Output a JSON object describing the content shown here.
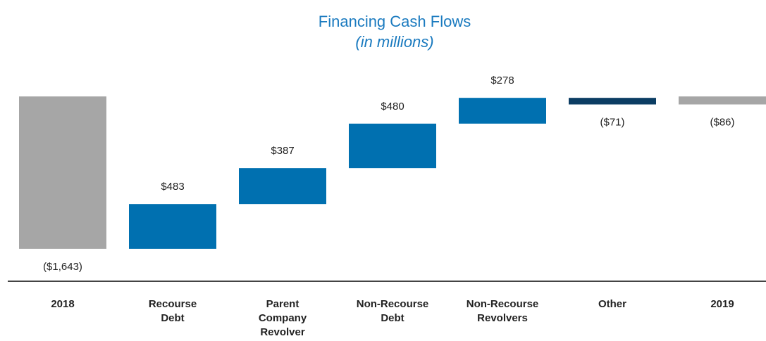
{
  "chart_data": {
    "type": "waterfall",
    "title": "Financing Cash Flows",
    "subtitle": "(in millions)",
    "categories": [
      "2018",
      "Recourse Debt",
      "Parent Company Revolver",
      "Non-Recourse Debt",
      "Non-Recourse Revolvers",
      "Other",
      "2019"
    ],
    "values": [
      -1643,
      483,
      387,
      480,
      278,
      -71,
      -86
    ],
    "value_labels": [
      "($1,643)",
      "$483",
      "$387",
      "$480",
      "$278",
      "($71)",
      "($86)"
    ],
    "measure": [
      "total",
      "relative",
      "relative",
      "relative",
      "relative",
      "relative",
      "total"
    ],
    "colors": [
      "#a6a6a6",
      "#0070b0",
      "#0070b0",
      "#0070b0",
      "#0070b0",
      "#0b3d63",
      "#a6a6a6"
    ],
    "ylim": [
      -1750,
      100
    ]
  }
}
